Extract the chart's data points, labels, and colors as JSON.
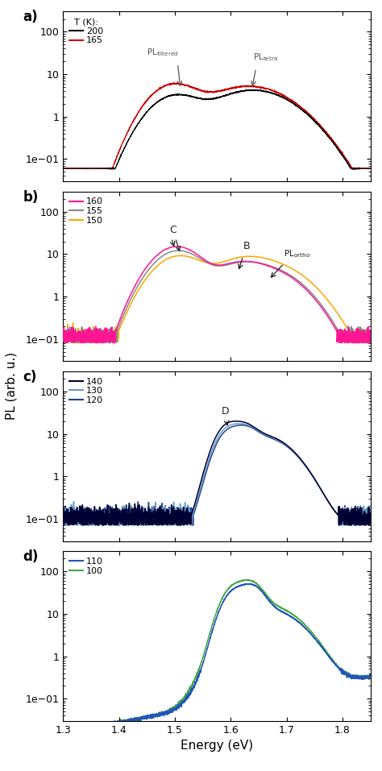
{
  "xlim": [
    1.3,
    1.85
  ],
  "ylim_a": [
    0.03,
    300
  ],
  "ylim_b": [
    0.03,
    300
  ],
  "ylim_c": [
    0.03,
    300
  ],
  "ylim_d": [
    0.03,
    300
  ],
  "yticks": [
    0.1,
    1,
    10,
    100
  ],
  "xticks": [
    1.3,
    1.4,
    1.5,
    1.6,
    1.7,
    1.8
  ],
  "xlabel": "Energy (eV)",
  "ylabel": "PL (arb. u.)",
  "panel_labels": [
    "a)",
    "b)",
    "c)",
    "d)"
  ],
  "panel_a": {
    "legend_title": "T (K):",
    "curves": [
      {
        "label": "200",
        "color": "#000000",
        "T": 200
      },
      {
        "label": "165",
        "color": "#cc0000",
        "T": 165
      }
    ]
  },
  "panel_b": {
    "curves": [
      {
        "label": "160",
        "color": "#ff1493",
        "T": 160
      },
      {
        "label": "155",
        "color": "#888888",
        "T": 155
      },
      {
        "label": "150",
        "color": "#ffa500",
        "T": 150
      }
    ]
  },
  "panel_c": {
    "curves": [
      {
        "label": "140",
        "color": "#000033",
        "T": 140
      },
      {
        "label": "130",
        "color": "#6699cc",
        "T": 130
      },
      {
        "label": "120",
        "color": "#224488",
        "T": 120
      }
    ]
  },
  "panel_d": {
    "curves": [
      {
        "label": "110",
        "color": "#2255bb",
        "T": 110
      },
      {
        "label": "100",
        "color": "#44aa44",
        "T": 100
      }
    ]
  },
  "bg_color": "#ffffff",
  "annotation_color": "#555555",
  "annotation_color_dark": "#222222"
}
